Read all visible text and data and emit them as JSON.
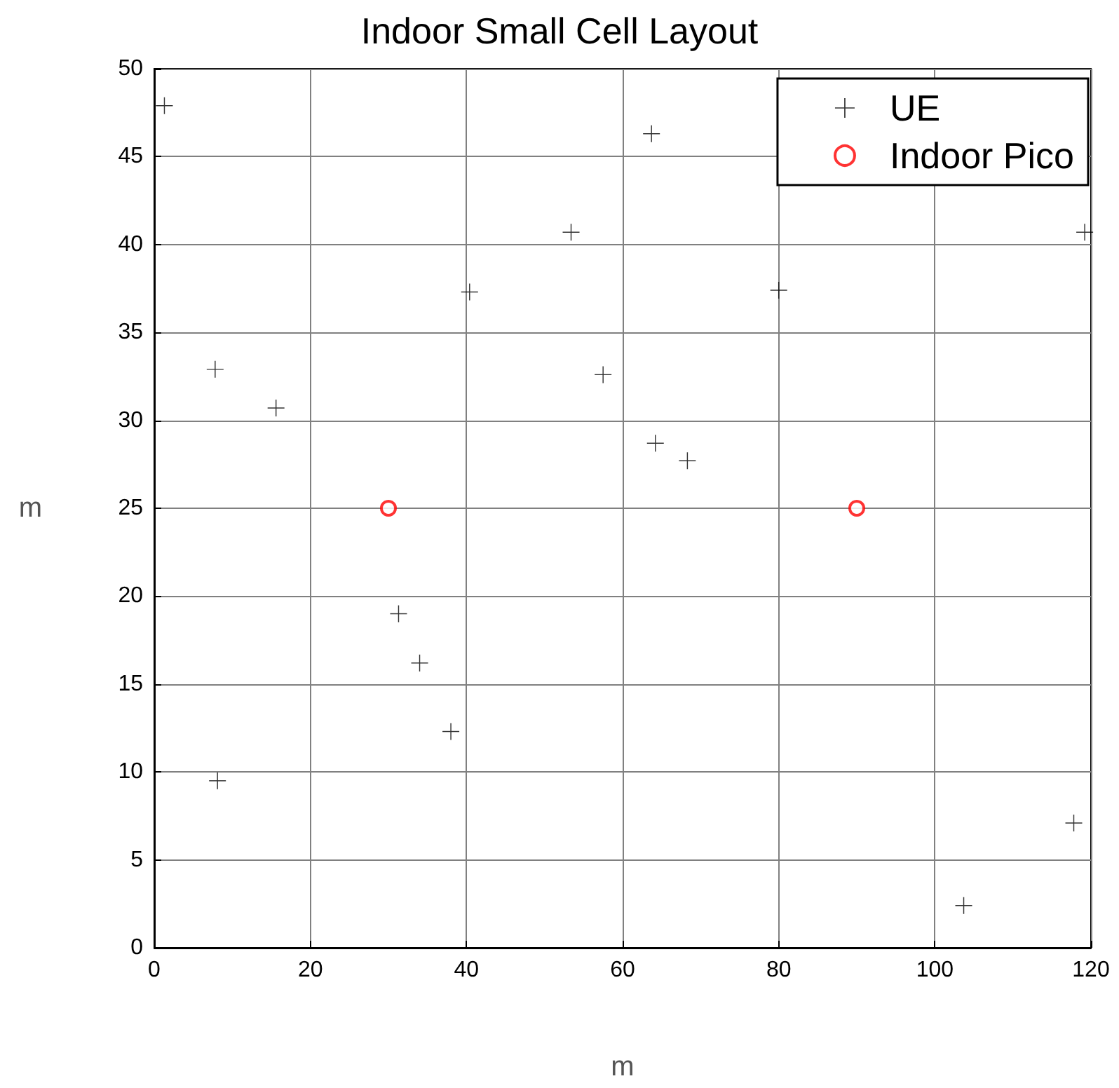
{
  "chart_data": {
    "type": "scatter",
    "title": "Indoor Small Cell Layout",
    "xlabel": "m",
    "ylabel": "m",
    "xlim": [
      0,
      120
    ],
    "xticks": [
      0,
      20,
      40,
      60,
      80,
      100,
      120
    ],
    "ylim": [
      0,
      50
    ],
    "yticks": [
      0,
      5,
      10,
      15,
      20,
      25,
      30,
      35,
      40,
      45,
      50
    ],
    "grid": true,
    "legend": "top right",
    "series": [
      {
        "name": "UE",
        "color": "#000000",
        "marker": "cross",
        "x": [
          1.3,
          7.8,
          15.6,
          40.4,
          53.4,
          57.5,
          63.7,
          119.2,
          80.0,
          64.2,
          68.3,
          31.3,
          34.0,
          38.0,
          8.1,
          117.8,
          103.7
        ],
        "values": [
          47.9,
          32.9,
          30.7,
          37.3,
          40.7,
          32.6,
          46.3,
          40.7,
          37.4,
          28.7,
          27.7,
          19.0,
          16.2,
          12.3,
          9.5,
          7.1,
          2.4
        ]
      },
      {
        "name": "Indoor Pico",
        "color": "#ff0000",
        "marker": "circle",
        "x": [
          30,
          90
        ],
        "values": [
          25,
          25
        ]
      }
    ]
  }
}
